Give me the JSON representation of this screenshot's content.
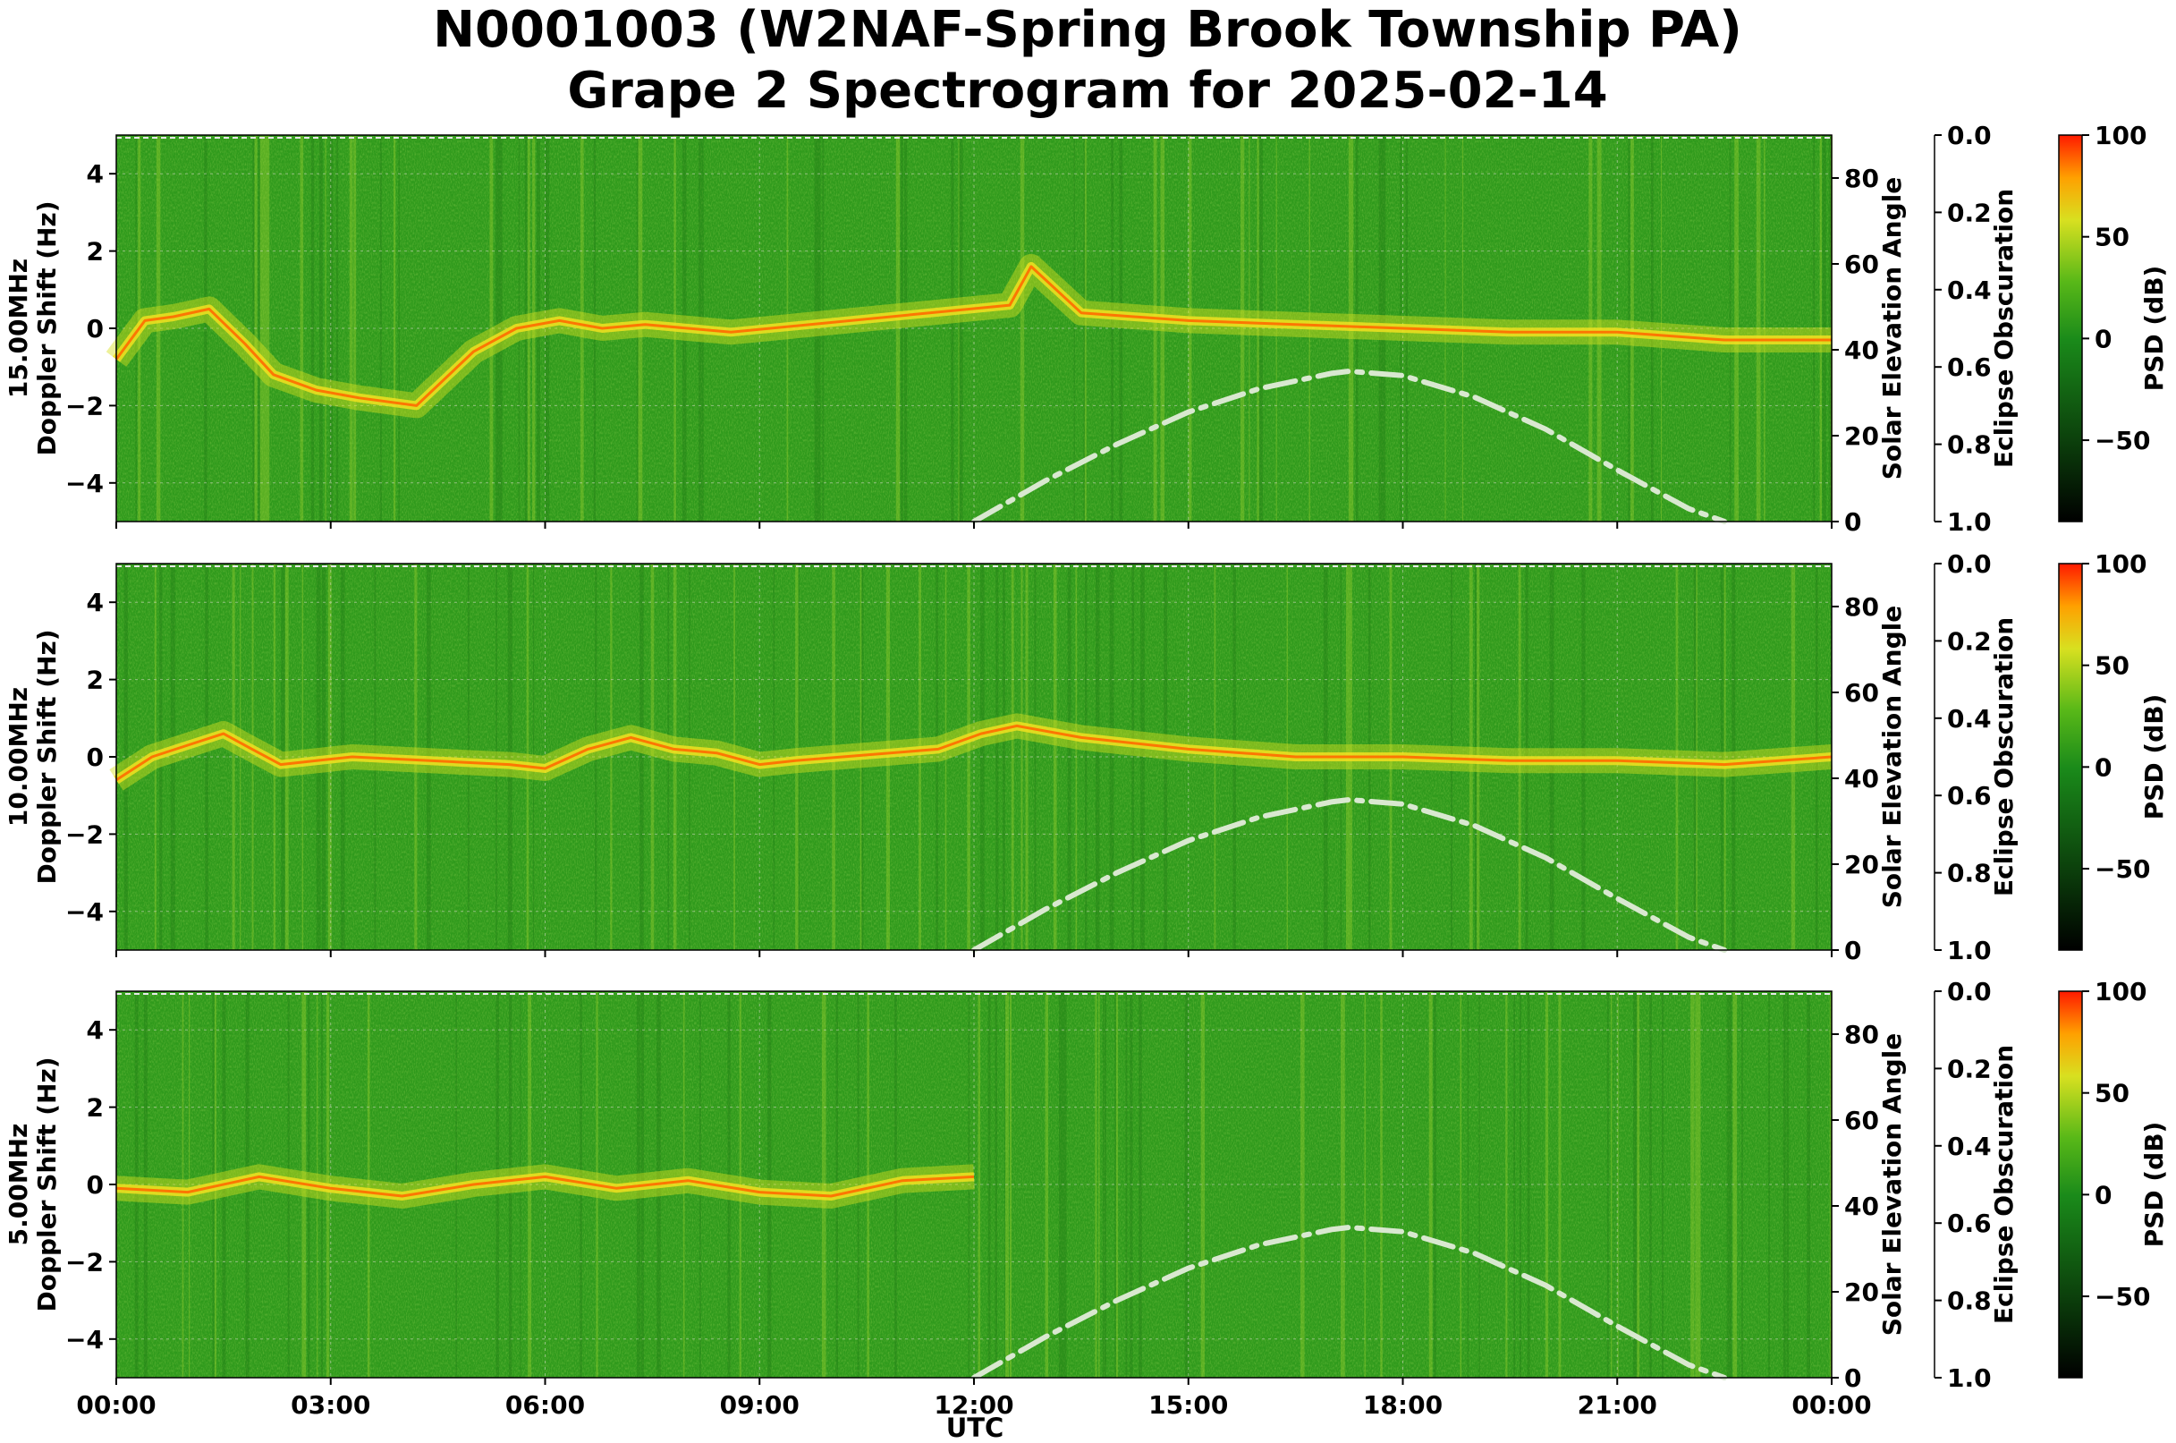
{
  "figure": {
    "title_line1": "N0001003 (W2NAF-Spring Brook Township PA)",
    "title_line2": "Grape 2 Spectrogram for 2025-02-14",
    "xlabel": "UTC"
  },
  "chart_data": [
    {
      "type": "heatmap",
      "frequency_label": "15.00MHz",
      "ylabel": "Doppler Shift (Hz)",
      "ylim": [
        -5,
        5
      ],
      "yticks": [
        "4",
        "2",
        "0",
        "−2",
        "−4"
      ],
      "ytick_values": [
        4,
        2,
        0,
        -2,
        -4
      ],
      "xlim_hours": [
        0,
        24
      ],
      "xticks": [
        "00:00",
        "03:00",
        "06:00",
        "09:00",
        "12:00",
        "15:00",
        "18:00",
        "21:00",
        "00:00"
      ],
      "xtick_hours": [
        0,
        3,
        6,
        9,
        12,
        15,
        18,
        21,
        24
      ],
      "right_axis": {
        "label": "Solar Elevation Angle",
        "ylim": [
          0,
          90
        ],
        "ticks": [
          "0",
          "20",
          "40",
          "60",
          "80"
        ],
        "tick_values": [
          0,
          20,
          40,
          60,
          80
        ]
      },
      "eclipse_axis": {
        "label": "Eclipse Obscuration",
        "ylim": [
          1.0,
          0.0
        ],
        "ticks": [
          "0.0",
          "0.2",
          "0.4",
          "0.6",
          "0.8",
          "1.0"
        ],
        "tick_values": [
          0.0,
          0.2,
          0.4,
          0.6,
          0.8,
          1.0
        ]
      },
      "colorbar": {
        "label": "PSD (dB)",
        "range": [
          -90,
          100
        ],
        "ticks": [
          "100",
          "50",
          "0",
          "−50"
        ],
        "tick_values": [
          100,
          50,
          0,
          -50
        ]
      },
      "solar_elevation": {
        "hours": [
          12,
          13,
          14,
          15,
          16,
          17,
          17.25,
          18,
          19,
          20,
          21,
          22,
          22.5
        ],
        "degrees": [
          0,
          9.5,
          18,
          25.5,
          31,
          34.5,
          35,
          34,
          29,
          21.5,
          12,
          3,
          0
        ]
      },
      "doppler_trace": {
        "hours": [
          0,
          0.4,
          0.8,
          1.3,
          1.8,
          2.2,
          2.8,
          3.4,
          4.2,
          5.0,
          5.6,
          6.2,
          6.8,
          7.4,
          8.0,
          8.6,
          12.5,
          12.8,
          13.5,
          15,
          16.5,
          18,
          19.5,
          21,
          22.5,
          24
        ],
        "hz": [
          -0.8,
          0.2,
          0.3,
          0.5,
          -0.4,
          -1.2,
          -1.6,
          -1.8,
          -2.0,
          -0.6,
          0.0,
          0.2,
          0.0,
          0.1,
          0.0,
          -0.1,
          0.6,
          1.6,
          0.4,
          0.2,
          0.1,
          0.0,
          -0.1,
          -0.1,
          -0.3,
          -0.3
        ]
      }
    },
    {
      "type": "heatmap",
      "frequency_label": "10.00MHz",
      "ylabel": "Doppler Shift (Hz)",
      "ylim": [
        -5,
        5
      ],
      "yticks": [
        "4",
        "2",
        "0",
        "−2",
        "−4"
      ],
      "ytick_values": [
        4,
        2,
        0,
        -2,
        -4
      ],
      "xlim_hours": [
        0,
        24
      ],
      "xticks": [
        "00:00",
        "03:00",
        "06:00",
        "09:00",
        "12:00",
        "15:00",
        "18:00",
        "21:00",
        "00:00"
      ],
      "xtick_hours": [
        0,
        3,
        6,
        9,
        12,
        15,
        18,
        21,
        24
      ],
      "right_axis": {
        "label": "Solar Elevation Angle",
        "ylim": [
          0,
          90
        ],
        "ticks": [
          "0",
          "20",
          "40",
          "60",
          "80"
        ],
        "tick_values": [
          0,
          20,
          40,
          60,
          80
        ]
      },
      "eclipse_axis": {
        "label": "Eclipse Obscuration",
        "ylim": [
          1.0,
          0.0
        ],
        "ticks": [
          "0.0",
          "0.2",
          "0.4",
          "0.6",
          "0.8",
          "1.0"
        ],
        "tick_values": [
          0.0,
          0.2,
          0.4,
          0.6,
          0.8,
          1.0
        ]
      },
      "colorbar": {
        "label": "PSD (dB)",
        "range": [
          -90,
          100
        ],
        "ticks": [
          "100",
          "50",
          "0",
          "−50"
        ],
        "tick_values": [
          100,
          50,
          0,
          -50
        ]
      },
      "solar_elevation": {
        "hours": [
          12,
          13,
          14,
          15,
          16,
          17,
          17.25,
          18,
          19,
          20,
          21,
          22,
          22.5
        ],
        "degrees": [
          0,
          9.5,
          18,
          25.5,
          31,
          34.5,
          35,
          34,
          29,
          21.5,
          12,
          3,
          0
        ]
      },
      "doppler_trace": {
        "hours": [
          0,
          0.5,
          1.0,
          1.5,
          1.9,
          2.3,
          2.8,
          3.3,
          5.5,
          6.0,
          6.6,
          7.2,
          7.8,
          8.4,
          9.0,
          9.5,
          11.5,
          12.1,
          12.6,
          13.5,
          15,
          16.5,
          18,
          19.5,
          21,
          22.5,
          24
        ],
        "hz": [
          -0.6,
          0.0,
          0.3,
          0.6,
          0.2,
          -0.2,
          -0.1,
          0.0,
          -0.2,
          -0.3,
          0.2,
          0.5,
          0.2,
          0.1,
          -0.2,
          -0.1,
          0.2,
          0.6,
          0.8,
          0.5,
          0.2,
          0.0,
          0.0,
          -0.1,
          -0.1,
          -0.2,
          0.0
        ]
      }
    },
    {
      "type": "heatmap",
      "frequency_label": "5.00MHz",
      "ylabel": "Doppler Shift (Hz)",
      "ylim": [
        -5,
        5
      ],
      "yticks": [
        "4",
        "2",
        "0",
        "−2",
        "−4"
      ],
      "ytick_values": [
        4,
        2,
        0,
        -2,
        -4
      ],
      "xlim_hours": [
        0,
        24
      ],
      "xticks": [
        "00:00",
        "03:00",
        "06:00",
        "09:00",
        "12:00",
        "15:00",
        "18:00",
        "21:00",
        "00:00"
      ],
      "xtick_hours": [
        0,
        3,
        6,
        9,
        12,
        15,
        18,
        21,
        24
      ],
      "right_axis": {
        "label": "Solar Elevation Angle",
        "ylim": [
          0,
          90
        ],
        "ticks": [
          "0",
          "20",
          "40",
          "60",
          "80"
        ],
        "tick_values": [
          0,
          20,
          40,
          60,
          80
        ]
      },
      "eclipse_axis": {
        "label": "Eclipse Obscuration",
        "ylim": [
          1.0,
          0.0
        ],
        "ticks": [
          "0.0",
          "0.2",
          "0.4",
          "0.6",
          "0.8",
          "1.0"
        ],
        "tick_values": [
          0.0,
          0.2,
          0.4,
          0.6,
          0.8,
          1.0
        ]
      },
      "colorbar": {
        "label": "PSD (dB)",
        "range": [
          -90,
          100
        ],
        "ticks": [
          "100",
          "50",
          "0",
          "−50"
        ],
        "tick_values": [
          100,
          50,
          0,
          -50
        ]
      },
      "solar_elevation": {
        "hours": [
          12,
          13,
          14,
          15,
          16,
          17,
          17.25,
          18,
          19,
          20,
          21,
          22,
          22.5
        ],
        "degrees": [
          0,
          9.5,
          18,
          25.5,
          31,
          34.5,
          35,
          34,
          29,
          21.5,
          12,
          3,
          0
        ]
      },
      "doppler_trace": {
        "hours": [
          0,
          1,
          2,
          3,
          4,
          5,
          6,
          7,
          8,
          9,
          10,
          11,
          12
        ],
        "hz": [
          -0.1,
          -0.2,
          0.2,
          -0.1,
          -0.3,
          0.0,
          0.2,
          -0.1,
          0.1,
          -0.2,
          -0.3,
          0.1,
          0.2
        ]
      }
    }
  ]
}
